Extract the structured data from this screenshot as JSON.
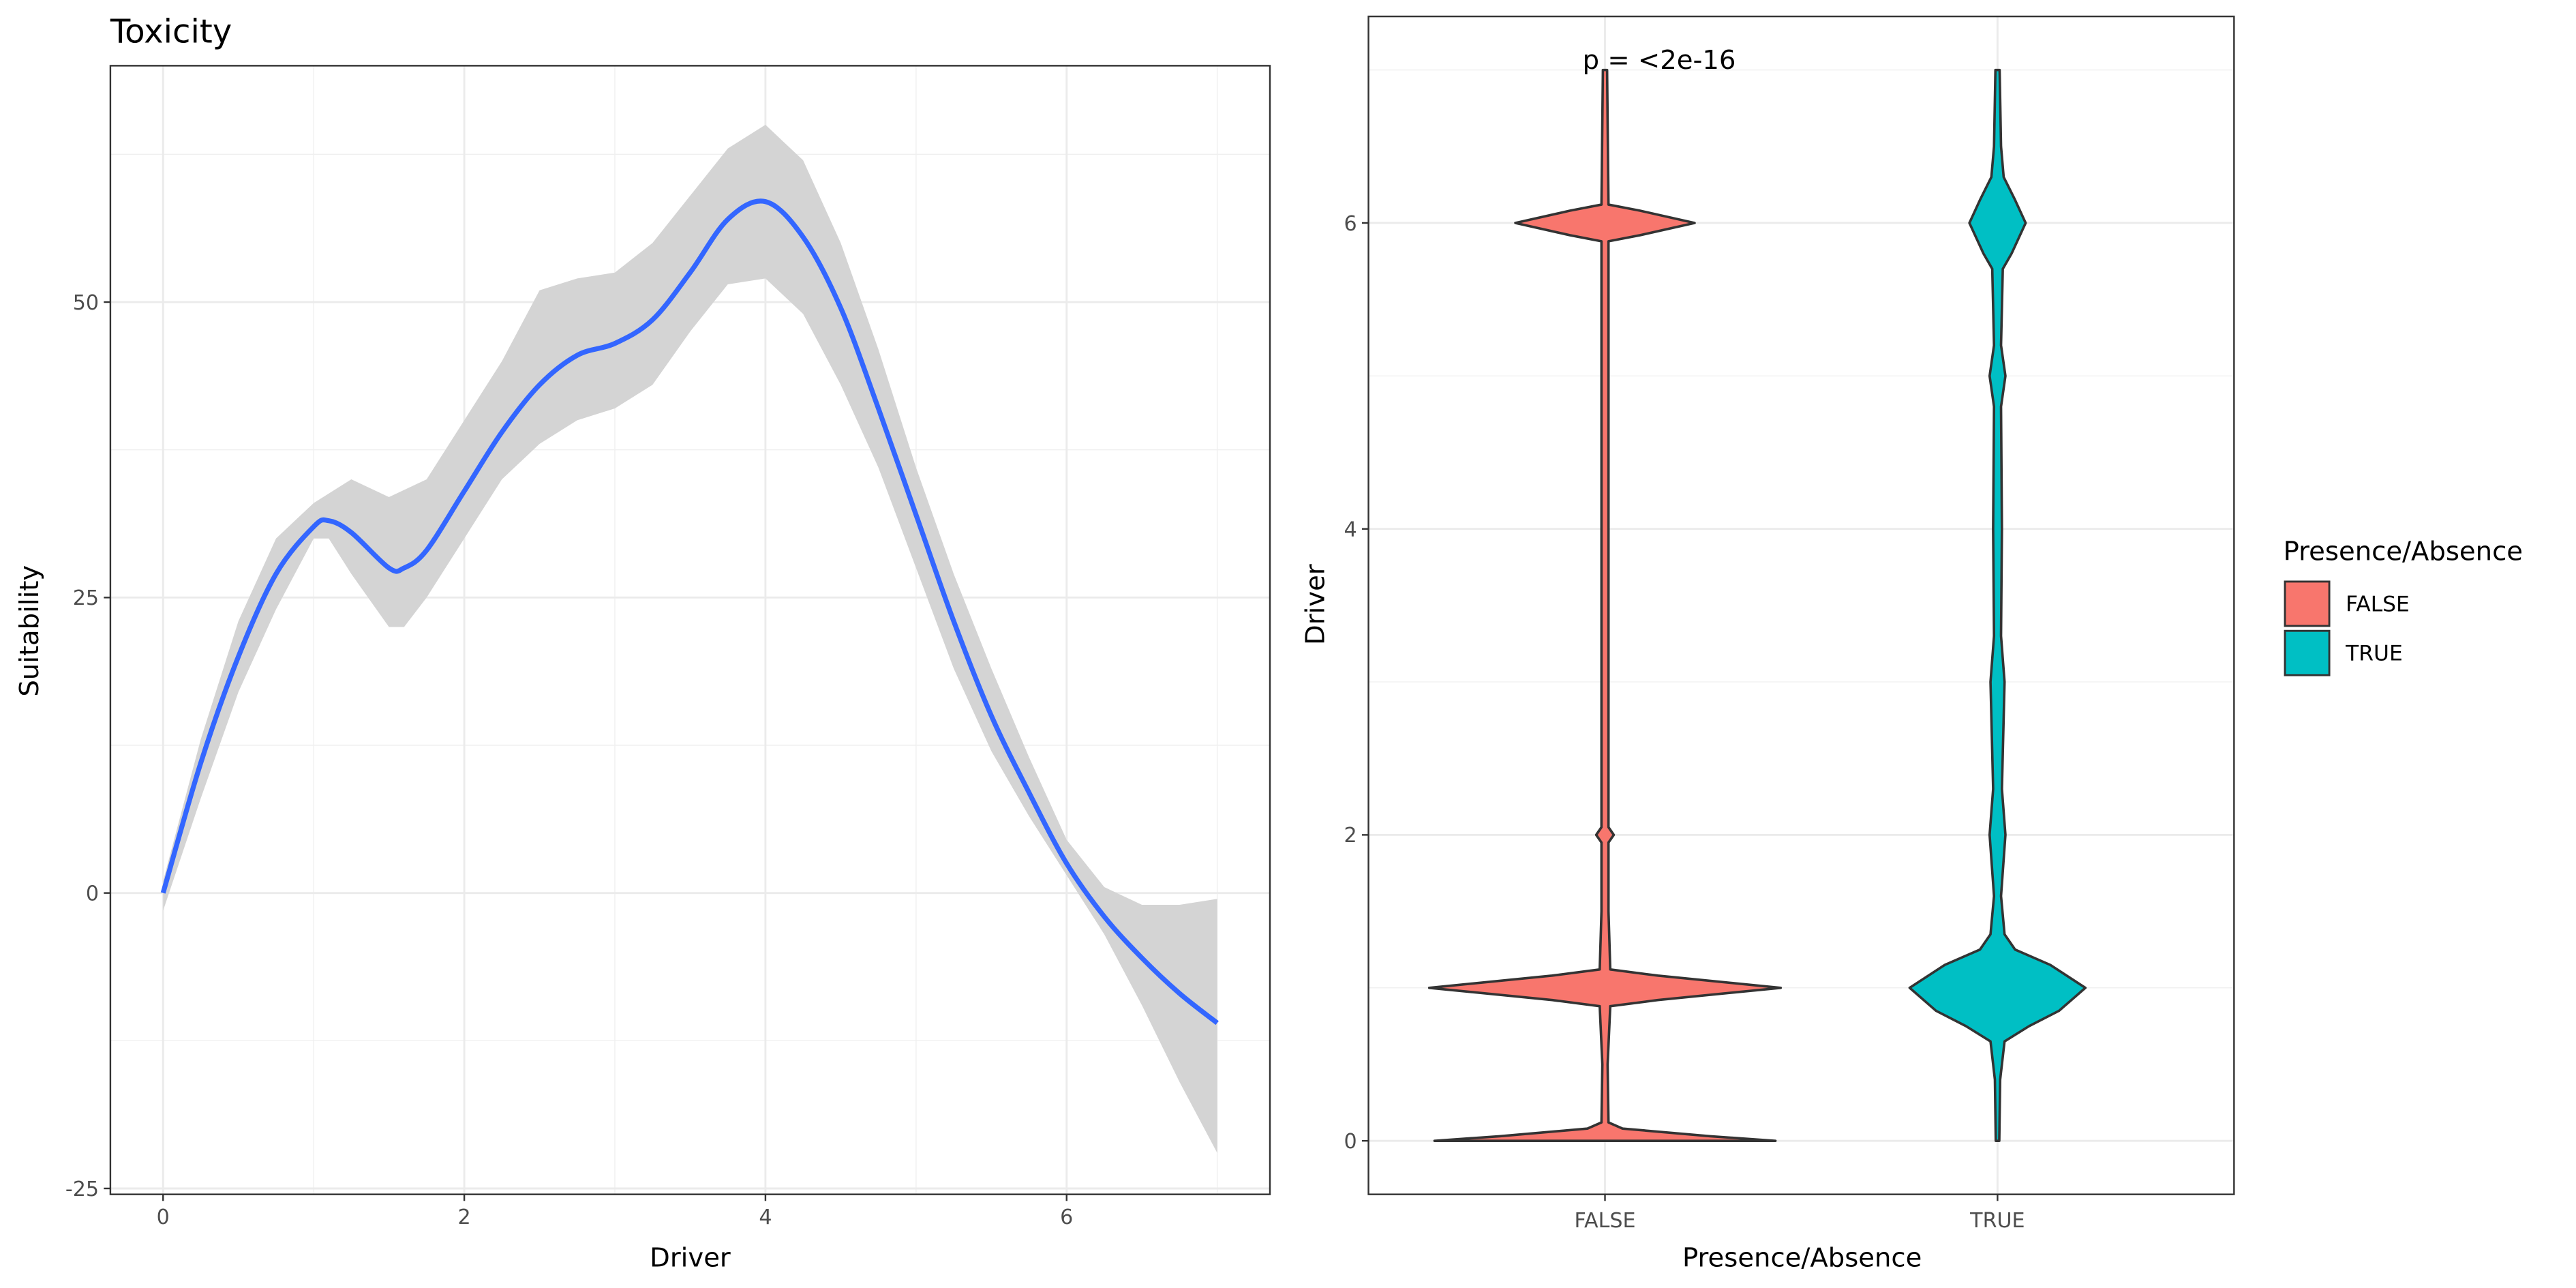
{
  "chart_data": [
    {
      "type": "line",
      "title": "Toxicity",
      "xlabel": "Driver",
      "ylabel": "Suitability",
      "xlim": [
        -0.35,
        7.35
      ],
      "ylim": [
        -25.5,
        70
      ],
      "xticks": [
        0,
        2,
        4,
        6
      ],
      "yticks": [
        -25,
        0,
        25,
        50
      ],
      "xtick_labels": [
        "0",
        "2",
        "4",
        "6"
      ],
      "ytick_labels": [
        "-25",
        "0",
        "25",
        "50"
      ],
      "grid": true,
      "line_color": "#3366ff",
      "ribbon_color": "#d4d4d4",
      "series": [
        {
          "name": "fit",
          "x": [
            0,
            0.25,
            0.5,
            0.75,
            1,
            1.1,
            1.25,
            1.5,
            1.6,
            1.75,
            2,
            2.25,
            2.5,
            2.75,
            3,
            3.25,
            3.5,
            3.75,
            4,
            4.25,
            4.5,
            4.75,
            5,
            5.25,
            5.5,
            5.75,
            6,
            6.25,
            6.5,
            6.75,
            7
          ],
          "y": [
            0,
            11,
            20,
            27,
            31,
            31.5,
            30.5,
            27.5,
            27.5,
            29,
            34,
            39,
            43,
            45.5,
            46.5,
            48.5,
            52.5,
            57,
            58.5,
            55.5,
            49.5,
            41,
            32,
            23,
            15,
            8.5,
            2.5,
            -2,
            -5.5,
            -8.5,
            -11
          ]
        },
        {
          "name": "upper",
          "x": [
            0,
            0.25,
            0.5,
            0.75,
            1,
            1.25,
            1.5,
            1.75,
            2,
            2.25,
            2.5,
            2.75,
            3,
            3.25,
            3.5,
            3.75,
            4,
            4.25,
            4.5,
            4.75,
            5,
            5.25,
            5.5,
            5.75,
            6,
            6.25,
            6.5,
            6.75,
            7
          ],
          "y": [
            1,
            13,
            23,
            30,
            33,
            35,
            33.5,
            35,
            40,
            45,
            51,
            52,
            52.5,
            55,
            59,
            63,
            65,
            62,
            55,
            46,
            36,
            27,
            19,
            11.5,
            4.5,
            0.5,
            -1,
            -1,
            -0.5
          ]
        },
        {
          "name": "lower",
          "x": [
            0,
            0.25,
            0.5,
            0.75,
            1,
            1.1,
            1.25,
            1.5,
            1.6,
            1.75,
            2,
            2.25,
            2.5,
            2.75,
            3,
            3.25,
            3.5,
            3.75,
            4,
            4.25,
            4.5,
            4.75,
            5,
            5.25,
            5.5,
            5.75,
            6,
            6.25,
            6.5,
            6.75,
            7
          ],
          "y": [
            -1.5,
            8,
            17,
            24,
            30,
            30,
            27,
            22.5,
            22.5,
            25,
            30,
            35,
            38,
            40,
            41,
            43,
            47.5,
            51.5,
            52,
            49,
            43,
            36,
            27.5,
            19,
            12,
            6.5,
            1.5,
            -3.5,
            -9.5,
            -16,
            -22
          ]
        }
      ]
    },
    {
      "type": "violin",
      "xlabel": "Presence/Absence",
      "ylabel": "Driver",
      "categories": [
        "FALSE",
        "TRUE"
      ],
      "ylim": [
        -0.35,
        7.35
      ],
      "yticks": [
        0,
        2,
        4,
        6
      ],
      "ytick_labels": [
        "0",
        "2",
        "4",
        "6"
      ],
      "grid": true,
      "annotation": "p = <2e-16",
      "legend": {
        "title": "Presence/Absence",
        "position": "right",
        "entries": [
          "FALSE",
          "TRUE"
        ]
      },
      "colors": [
        "#f8766d",
        "#00bfc4"
      ],
      "series": [
        {
          "name": "FALSE",
          "density_profile": [
            [
              0,
              0.97
            ],
            [
              0.03,
              0.6
            ],
            [
              0.08,
              0.1
            ],
            [
              0.12,
              0.02
            ],
            [
              0.5,
              0.015
            ],
            [
              0.88,
              0.03
            ],
            [
              0.92,
              0.3
            ],
            [
              1,
              1.0
            ],
            [
              1.08,
              0.3
            ],
            [
              1.12,
              0.03
            ],
            [
              1.5,
              0.02
            ],
            [
              1.95,
              0.02
            ],
            [
              2,
              0.05
            ],
            [
              2.05,
              0.02
            ],
            [
              3,
              0.02
            ],
            [
              5.88,
              0.02
            ],
            [
              5.92,
              0.2
            ],
            [
              6,
              0.51
            ],
            [
              6.08,
              0.2
            ],
            [
              6.12,
              0.02
            ],
            [
              7,
              0.012
            ]
          ]
        },
        {
          "name": "TRUE",
          "density_profile": [
            [
              0,
              0.01
            ],
            [
              0.4,
              0.015
            ],
            [
              0.65,
              0.04
            ],
            [
              0.75,
              0.18
            ],
            [
              0.85,
              0.35
            ],
            [
              1,
              0.5
            ],
            [
              1.15,
              0.3
            ],
            [
              1.25,
              0.1
            ],
            [
              1.35,
              0.04
            ],
            [
              1.6,
              0.02
            ],
            [
              2,
              0.045
            ],
            [
              2.3,
              0.025
            ],
            [
              3,
              0.04
            ],
            [
              3.3,
              0.02
            ],
            [
              4,
              0.025
            ],
            [
              4.8,
              0.02
            ],
            [
              5,
              0.045
            ],
            [
              5.2,
              0.02
            ],
            [
              5.7,
              0.03
            ],
            [
              5.8,
              0.08
            ],
            [
              6,
              0.16
            ],
            [
              6.15,
              0.1
            ],
            [
              6.3,
              0.035
            ],
            [
              6.5,
              0.02
            ],
            [
              7,
              0.012
            ]
          ]
        }
      ]
    }
  ]
}
